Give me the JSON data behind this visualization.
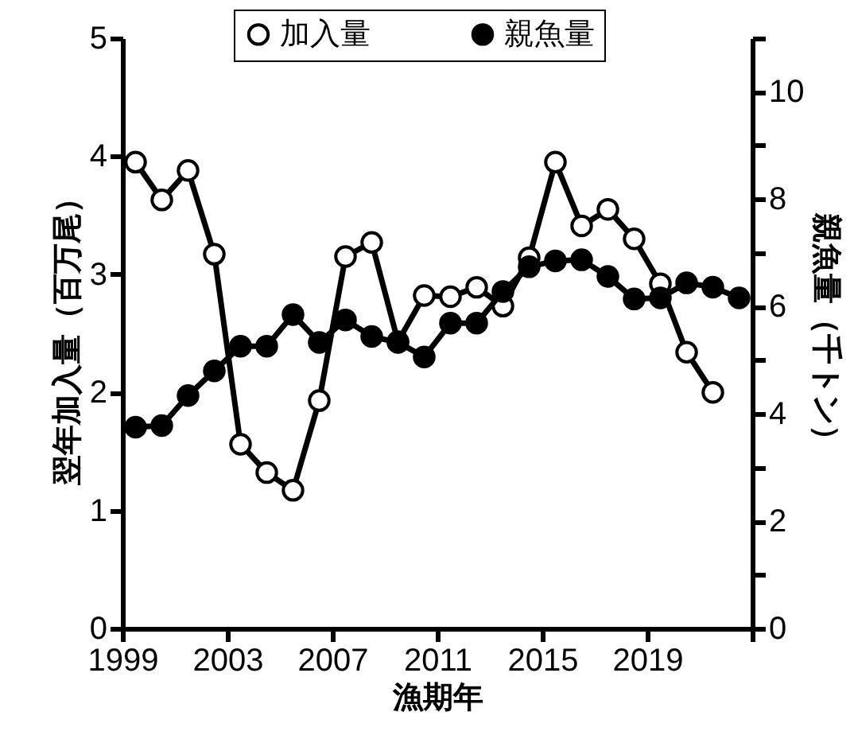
{
  "chart_data": {
    "type": "line",
    "xlabel": "漁期年",
    "ylabel": "翌年加入量（百万尾）",
    "y2label": "親魚量（千トン）",
    "xlim": [
      1999,
      2023
    ],
    "xticks": [
      1999,
      2003,
      2007,
      2011,
      2015,
      2019,
      {
        "value": 2023,
        "label": null
      }
    ],
    "ylim": [
      0,
      5
    ],
    "yticks": [
      0,
      1,
      2,
      3,
      4,
      5
    ],
    "y2lim": [
      0,
      11
    ],
    "y2ticks": [
      0,
      {
        "value": 1,
        "label": null
      },
      2,
      {
        "value": 3,
        "label": null
      },
      4,
      {
        "value": 5,
        "label": null
      },
      6,
      {
        "value": 7,
        "label": null
      },
      8,
      {
        "value": 9,
        "label": null
      },
      10,
      {
        "value": 11,
        "label": null
      }
    ],
    "x": [
      1999.5,
      2000.5,
      2001.5,
      2002.5,
      2003.5,
      2004.5,
      2005.5,
      2006.5,
      2007.5,
      2008.5,
      2009.5,
      2010.5,
      2011.5,
      2012.5,
      2013.5,
      2014.5,
      2015.5,
      2016.5,
      2017.5,
      2018.5,
      2019.5,
      2020.5,
      2021.5,
      2022.5
    ],
    "series": [
      {
        "name": "加入量",
        "color": "#000000",
        "values": [
          3.95,
          3.63,
          3.88,
          3.17,
          1.56,
          1.32,
          1.17,
          1.93,
          3.15,
          3.27,
          2.43,
          2.82,
          2.81,
          2.89,
          2.73,
          3.14,
          3.95,
          3.41,
          3.55,
          3.3,
          2.92,
          2.34,
          2.0,
          null
        ]
      },
      {
        "name": "親魚量",
        "color": "#000000",
        "axis": "y2",
        "values": [
          3.75,
          3.78,
          4.34,
          4.8,
          5.26,
          5.26,
          5.85,
          5.33,
          5.75,
          5.44,
          5.33,
          5.06,
          5.69,
          5.69,
          6.28,
          6.74,
          6.85,
          6.87,
          6.56,
          6.14,
          6.16,
          6.44,
          6.36,
          6.16
        ]
      }
    ],
    "marker": "circle",
    "line_style": "solid",
    "grid": false,
    "legend": "top"
  }
}
